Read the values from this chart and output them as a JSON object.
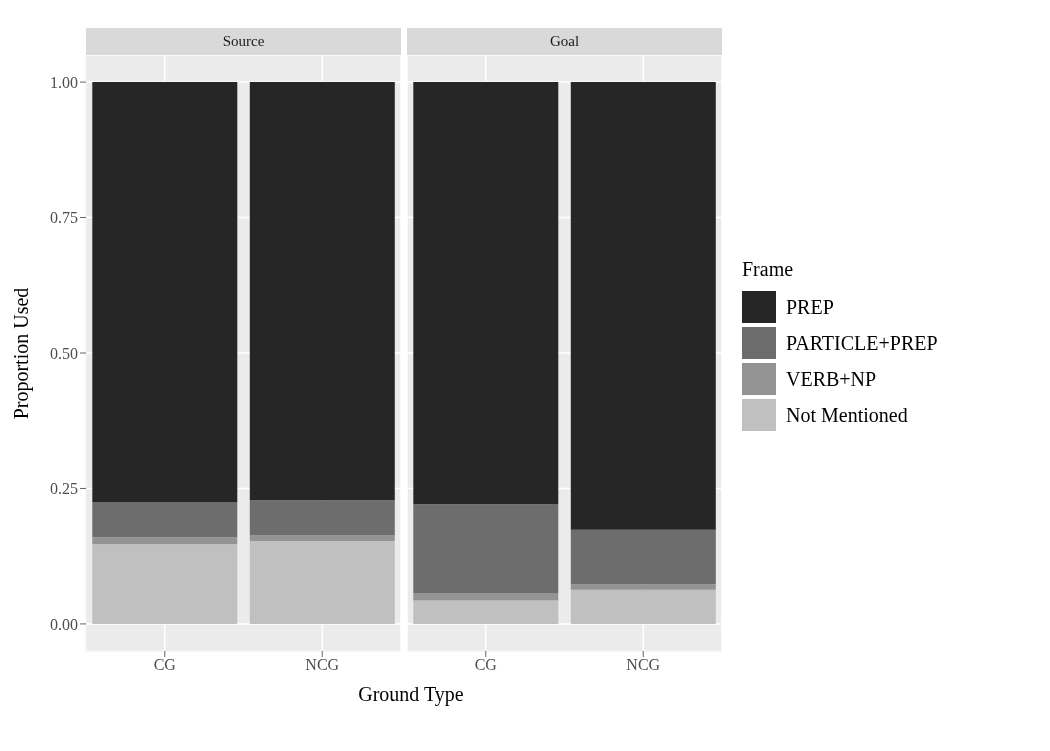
{
  "chart_data": [
    {
      "type": "bar",
      "title": "Source",
      "xlabel": "Ground Type",
      "ylabel": "Proportion Used",
      "categories": [
        "CG",
        "NCG"
      ],
      "stacked": true,
      "grid": true,
      "legend": false,
      "ylim": [
        -0.05,
        1.05
      ],
      "yticks": [
        {
          "value": 0,
          "label": "0.00"
        },
        {
          "value": 0.25,
          "label": "0.25"
        },
        {
          "value": 0.5,
          "label": "0.50"
        },
        {
          "value": 0.75,
          "label": "0.75"
        },
        {
          "value": 1,
          "label": "1.00"
        }
      ],
      "series": [
        {
          "color": "#c0c0c0",
          "values": [
            0.147,
            0.153
          ]
        },
        {
          "color": "#939393",
          "values": [
            0.013,
            0.01
          ]
        },
        {
          "color": "#6d6d6d",
          "values": [
            0.065,
            0.065
          ]
        },
        {
          "color": "#262626",
          "values": [
            0.775,
            0.772
          ]
        }
      ]
    },
    {
      "type": "bar",
      "title": "Goal",
      "categories": [
        "CG",
        "NCG"
      ],
      "stacked": true,
      "grid": true,
      "legend": "right",
      "legend_title": "Frame",
      "tick_labels": "x",
      "ylim": [
        -0.05,
        1.05
      ],
      "yticks": [
        0,
        0.25,
        0.5,
        0.75,
        1
      ],
      "series": [
        {
          "name": "Not Mentioned",
          "color": "#c0c0c0",
          "values": [
            0.043,
            0.063
          ]
        },
        {
          "name": "VERB+NP",
          "color": "#939393",
          "values": [
            0.014,
            0.01
          ]
        },
        {
          "name": "PARTICLE+PREP",
          "color": "#6d6d6d",
          "values": [
            0.164,
            0.101
          ]
        },
        {
          "name": "PREP",
          "color": "#262626",
          "values": [
            0.779,
            0.826
          ]
        }
      ]
    }
  ]
}
